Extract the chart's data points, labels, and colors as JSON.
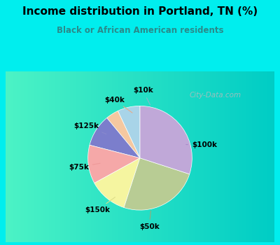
{
  "title": "Income distribution in Portland, TN (%)",
  "subtitle": "Black or African American residents",
  "title_color": "#000000",
  "subtitle_color": "#2a8a8a",
  "background_outer": "#00EEEE",
  "watermark": "City-Data.com",
  "labels": [
    "$10k",
    "$40k",
    "$125k",
    "$75k",
    "$150k",
    "$50k",
    "$100k"
  ],
  "values": [
    7.0,
    4.0,
    10.0,
    12.0,
    12.0,
    25.0,
    30.0
  ],
  "colors": [
    "#a8d4e8",
    "#f5c8a0",
    "#7b7ecc",
    "#f5a8a8",
    "#f5f5a0",
    "#b8cc94",
    "#c0a8d8"
  ],
  "startangle": 90
}
